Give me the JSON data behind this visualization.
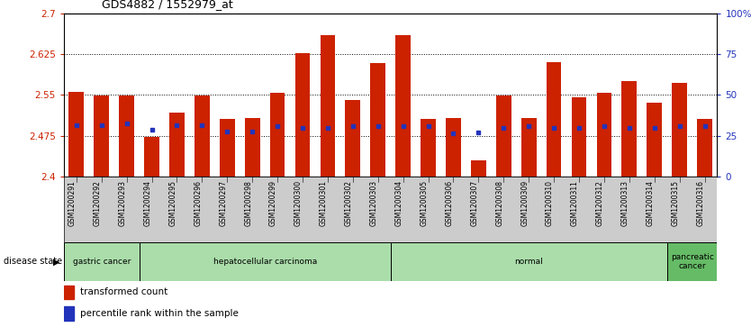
{
  "title": "GDS4882 / 1552979_at",
  "samples": [
    "GSM1200291",
    "GSM1200292",
    "GSM1200293",
    "GSM1200294",
    "GSM1200295",
    "GSM1200296",
    "GSM1200297",
    "GSM1200298",
    "GSM1200299",
    "GSM1200300",
    "GSM1200301",
    "GSM1200302",
    "GSM1200303",
    "GSM1200304",
    "GSM1200305",
    "GSM1200306",
    "GSM1200307",
    "GSM1200308",
    "GSM1200309",
    "GSM1200310",
    "GSM1200311",
    "GSM1200312",
    "GSM1200313",
    "GSM1200314",
    "GSM1200315",
    "GSM1200316"
  ],
  "bar_values": [
    2.555,
    2.548,
    2.548,
    2.472,
    2.518,
    2.548,
    2.505,
    2.507,
    2.553,
    2.627,
    2.66,
    2.54,
    2.608,
    2.66,
    2.505,
    2.508,
    2.43,
    2.548,
    2.508,
    2.61,
    2.545,
    2.553,
    2.575,
    2.535,
    2.572,
    2.505
  ],
  "percentile_values": [
    2.4947,
    2.4947,
    2.497,
    2.4852,
    2.4947,
    2.4947,
    2.483,
    2.483,
    2.4925,
    2.49,
    2.49,
    2.4918,
    2.4925,
    2.4925,
    2.4918,
    2.48,
    2.4818,
    2.49,
    2.4918,
    2.49,
    2.49,
    2.4918,
    2.49,
    2.49,
    2.4918,
    2.4918
  ],
  "bar_bottom": 2.4,
  "ylim_min": 2.4,
  "ylim_max": 2.7,
  "yticks_left": [
    2.4,
    2.475,
    2.55,
    2.625,
    2.7
  ],
  "yticks_left_labels": [
    "2.4",
    "2.475",
    "2.55",
    "2.625",
    "2.7"
  ],
  "yticks_right": [
    0,
    25,
    50,
    75,
    100
  ],
  "yticks_right_labels": [
    "0",
    "25",
    "50",
    "75",
    "100%"
  ],
  "bar_color": "#cc2200",
  "percentile_color": "#2233bb",
  "background_color": "#ffffff",
  "group_defs": [
    {
      "label": "gastric cancer",
      "start": 0,
      "end": 3,
      "color": "#aaddaa"
    },
    {
      "label": "hepatocellular carcinoma",
      "start": 3,
      "end": 13,
      "color": "#aaddaa"
    },
    {
      "label": "normal",
      "start": 13,
      "end": 24,
      "color": "#aaddaa"
    },
    {
      "label": "pancreatic\ncancer",
      "start": 24,
      "end": 26,
      "color": "#66bb66"
    }
  ],
  "disease_state_label": "disease state",
  "legend_items": [
    {
      "color": "#cc2200",
      "label": "transformed count"
    },
    {
      "color": "#2233bb",
      "label": "percentile rank within the sample"
    }
  ],
  "xtick_bg_color": "#cccccc",
  "spine_color": "#000000"
}
